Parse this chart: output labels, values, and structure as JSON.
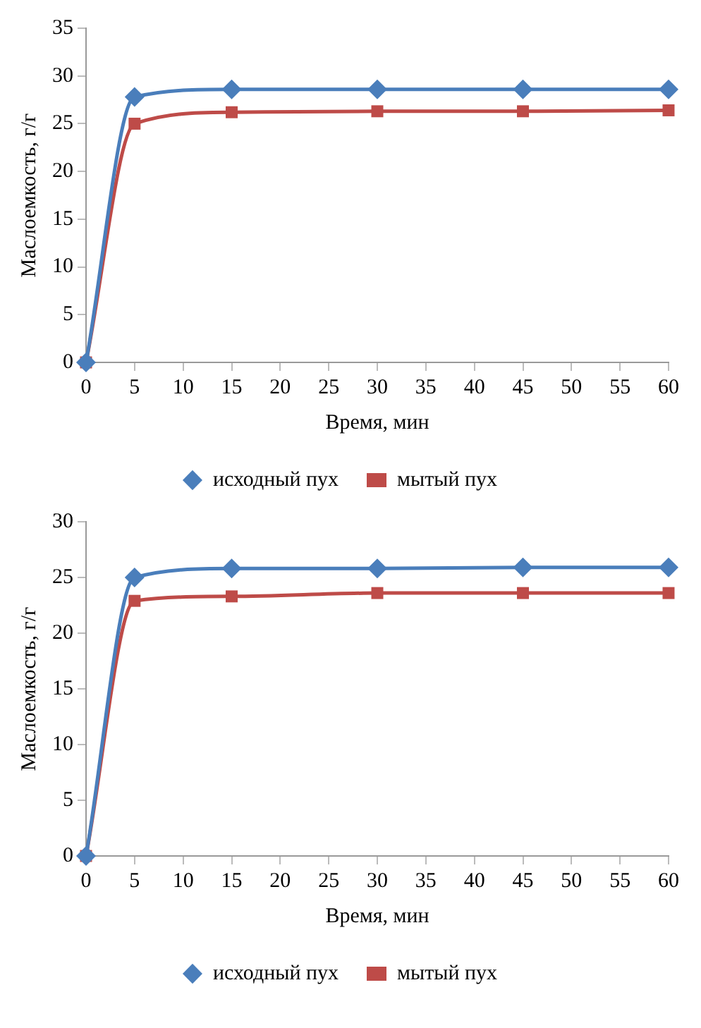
{
  "chart_data": [
    {
      "type": "line",
      "xlabel": "Время, мин",
      "ylabel": "Маслоемкость, г/г",
      "x": [
        0,
        5,
        15,
        30,
        45,
        60
      ],
      "xlim": [
        0,
        60
      ],
      "xticks": [
        0,
        5,
        10,
        15,
        20,
        25,
        30,
        35,
        40,
        45,
        50,
        55,
        60
      ],
      "ylim": [
        0,
        35
      ],
      "yticks": [
        0,
        5,
        10,
        15,
        20,
        25,
        30,
        35
      ],
      "grid": false,
      "legend": "bottom",
      "series": [
        {
          "name": "исходный пух",
          "color": "#4a7ebb",
          "marker": "diamond",
          "values": [
            0,
            27.8,
            28.6,
            28.6,
            28.6,
            28.6
          ]
        },
        {
          "name": "мытый пух",
          "color": "#be4b48",
          "marker": "square",
          "values": [
            0,
            25.0,
            26.2,
            26.3,
            26.3,
            26.4
          ]
        }
      ]
    },
    {
      "type": "line",
      "xlabel": "Время, мин",
      "ylabel": "Маслоемкость, г/г",
      "x": [
        0,
        5,
        15,
        30,
        45,
        60
      ],
      "xlim": [
        0,
        60
      ],
      "xticks": [
        0,
        5,
        10,
        15,
        20,
        25,
        30,
        35,
        40,
        45,
        50,
        55,
        60
      ],
      "ylim": [
        0,
        30
      ],
      "yticks": [
        0,
        5,
        10,
        15,
        20,
        25,
        30
      ],
      "grid": false,
      "legend": "bottom",
      "series": [
        {
          "name": "исходный пух",
          "color": "#4a7ebb",
          "marker": "diamond",
          "values": [
            0,
            25.0,
            25.8,
            25.8,
            25.9,
            25.9
          ]
        },
        {
          "name": "мытый пух",
          "color": "#be4b48",
          "marker": "square",
          "values": [
            0,
            22.9,
            23.3,
            23.6,
            23.6,
            23.6
          ]
        }
      ]
    }
  ]
}
